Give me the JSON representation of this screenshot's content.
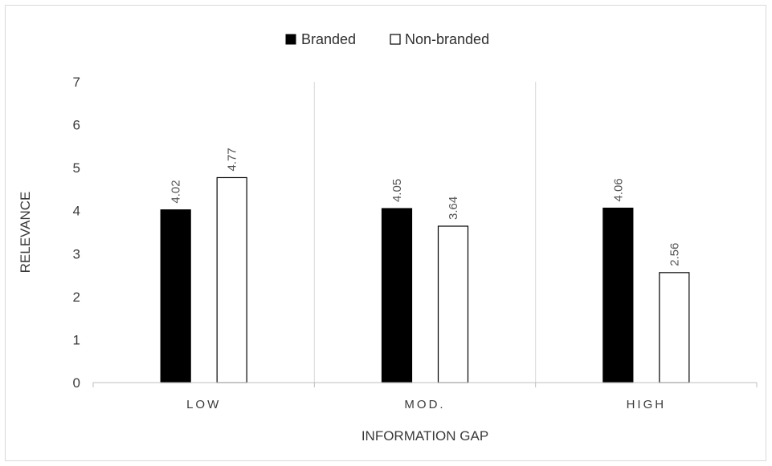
{
  "chart_data": {
    "type": "bar",
    "title": "",
    "xlabel": "INFORMATION GAP",
    "ylabel": "RELEVANCE",
    "categories": [
      "LOW",
      "MOD.",
      "HIGH"
    ],
    "ylim": [
      0,
      7
    ],
    "yticks": [
      "0",
      "1",
      "2",
      "3",
      "4",
      "5",
      "6",
      "7"
    ],
    "grid": "vertical separators between categories",
    "legend_position": "top-center",
    "series": [
      {
        "name": "Branded",
        "values": [
          4.02,
          4.05,
          4.06
        ],
        "labels": [
          "4.02",
          "4.05",
          "4.06"
        ],
        "fill": "#000000",
        "stroke": "#000000"
      },
      {
        "name": "Non-branded",
        "values": [
          4.77,
          3.64,
          2.56
        ],
        "labels": [
          "4.77",
          "3.64",
          "2.56"
        ],
        "fill": "#ffffff",
        "stroke": "#000000"
      }
    ],
    "colors": {
      "axis": "#bfbfbf",
      "separator": "#d9d9d9",
      "text": "#3a3a3a"
    }
  }
}
